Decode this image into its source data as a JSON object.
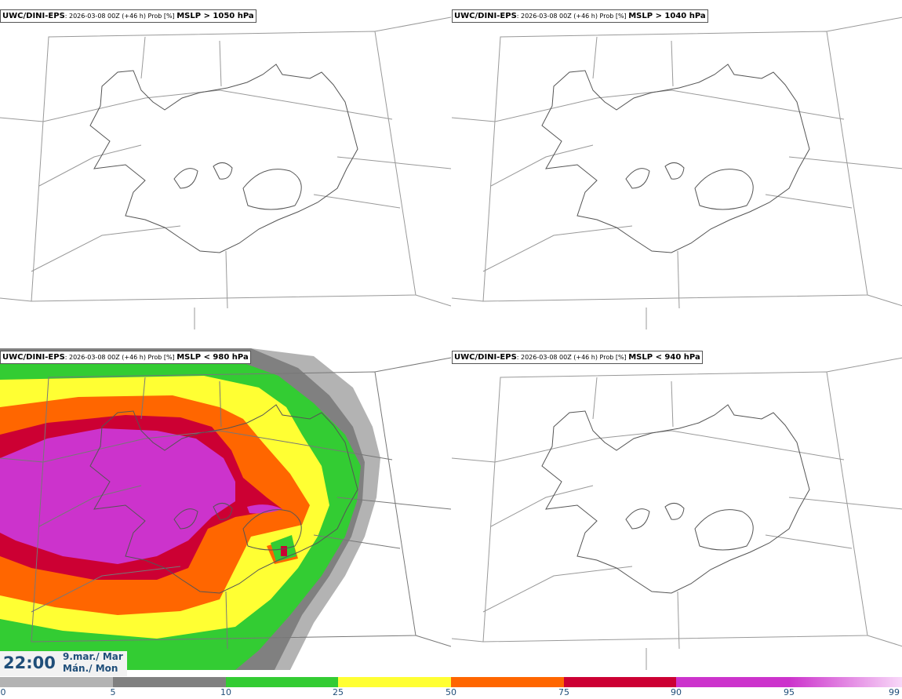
{
  "panels": [
    {
      "source": "UWC/DINI-EPS",
      "run": ": 2026-03-08 00Z (+46 h) Prob [%]",
      "field": "MSLP > 1050 hPa"
    },
    {
      "source": "UWC/DINI-EPS",
      "run": ": 2026-03-08 00Z (+46 h) Prob [%]",
      "field": "MSLP > 1040 hPa"
    },
    {
      "source": "UWC/DINI-EPS",
      "run": ": 2026-03-08 00Z (+46 h) Prob [%]",
      "field": "MSLP < 980 hPa"
    },
    {
      "source": "UWC/DINI-EPS",
      "run": ": 2026-03-08 00Z (+46 h) Prob [%]",
      "field": "MSLP < 940 hPa"
    }
  ],
  "valid_time": {
    "time": "22:00",
    "date_line1": "9.mar./ Mar",
    "date_line2": "Mán./ Mon"
  },
  "colorbar": {
    "ticks": [
      "0",
      "5",
      "10",
      "25",
      "50",
      "75",
      "90",
      "95",
      "99"
    ],
    "colors": [
      "#ffffff",
      "#b3b3b3",
      "#808080",
      "#33cc33",
      "#ffff33",
      "#ff6600",
      "#cc0033",
      "#cc33cc",
      "#f2a6f2"
    ]
  }
}
